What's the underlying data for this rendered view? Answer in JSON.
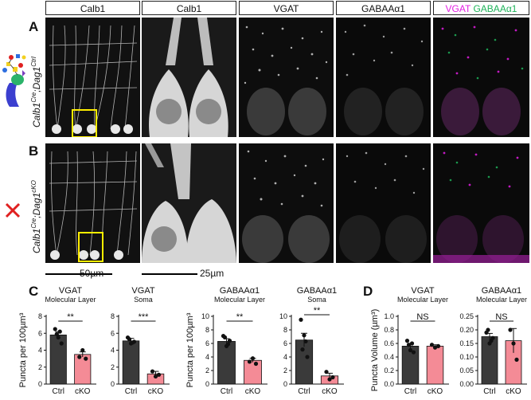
{
  "headers": [
    "Calb1",
    "Calb1",
    "VGAT",
    "GABAₐα1",
    "VGAT GABAₐα1"
  ],
  "header_parts": {
    "h1": "Calb1",
    "h2": "Calb1",
    "h3": "VGAT",
    "h4": "GABAAα1",
    "h5a": "VGAT",
    "h5b": "GABAAα1"
  },
  "colors": {
    "magenta": "#e31ce3",
    "green": "#1fb35a",
    "ctrl": "#3a3a3a",
    "cko": "#f48b96",
    "yellow": "#ffee00",
    "red": "#e02020"
  },
  "panels": {
    "A": "A",
    "B": "B",
    "C": "C",
    "D": "D"
  },
  "rows": {
    "a_label_main": "Calb1",
    "a_label_sup1": "Cre",
    "a_label_mid": ";Dag1",
    "a_label_sup2": "Ctrl",
    "b_label_main": "Calb1",
    "b_label_sup1": "Cre",
    "b_label_mid": ";Dag1",
    "b_label_sup2": "cKO"
  },
  "icons": {
    "row_a": "dystroglycan-glycan-icon",
    "row_b": "red-x-icon"
  },
  "scalebars": {
    "left": "50µm",
    "right": "25µm"
  },
  "chart_data": [
    {
      "type": "bar",
      "title": "VGAT",
      "subtitle": "Molecular Layer",
      "ylabel": "Puncta per 100µm³",
      "categories": [
        "Ctrl",
        "cKO"
      ],
      "values": [
        5.8,
        3.5
      ],
      "errors": [
        0.4,
        0.3
      ],
      "ylim": [
        0,
        8
      ],
      "yticks": [
        0,
        2,
        4,
        6,
        8
      ],
      "significance": "**",
      "points": [
        [
          6.5,
          5.5,
          4.8,
          5.9,
          6.2
        ],
        [
          3.2,
          4.0,
          3.0
        ]
      ]
    },
    {
      "type": "bar",
      "title": "VGAT",
      "subtitle": "Soma",
      "ylabel": "",
      "categories": [
        "Ctrl",
        "cKO"
      ],
      "values": [
        5.1,
        1.2
      ],
      "errors": [
        0.3,
        0.3
      ],
      "ylim": [
        0,
        8
      ],
      "yticks": [
        0,
        2,
        4,
        6,
        8
      ],
      "significance": "***",
      "points": [
        [
          5.5,
          4.8,
          5.0,
          5.3,
          4.9
        ],
        [
          1.5,
          0.9,
          1.1
        ]
      ]
    },
    {
      "type": "bar",
      "title": "GABAAα1",
      "subtitle": "Molecular Layer",
      "ylabel": "Puncta per 100µm³",
      "categories": [
        "Ctrl",
        "cKO"
      ],
      "values": [
        6.3,
        3.5
      ],
      "errors": [
        0.4,
        0.3
      ],
      "ylim": [
        0,
        10
      ],
      "yticks": [
        0,
        2,
        4,
        6,
        8,
        10
      ],
      "significance": "**",
      "points": [
        [
          7.1,
          5.6,
          6.4,
          6.9,
          5.9
        ],
        [
          3.3,
          3.8,
          3.0
        ]
      ]
    },
    {
      "type": "bar",
      "title": "GABAAα1",
      "subtitle": "Soma",
      "ylabel": "",
      "categories": [
        "Ctrl",
        "cKO"
      ],
      "values": [
        6.5,
        1.2
      ],
      "errors": [
        1.0,
        0.4
      ],
      "ylim": [
        0,
        10
      ],
      "yticks": [
        0,
        2,
        4,
        6,
        8,
        10
      ],
      "significance": "**",
      "points": [
        [
          9.5,
          7.2,
          4.0,
          5.1,
          6.3
        ],
        [
          1.8,
          0.7,
          1.0
        ]
      ]
    },
    {
      "type": "bar",
      "title": "VGAT",
      "subtitle": "Molecular Layer",
      "ylabel": "Puncta Volume (µm³)",
      "categories": [
        "Ctrl",
        "cKO"
      ],
      "values": [
        0.56,
        0.56
      ],
      "errors": [
        0.04,
        0.02
      ],
      "ylim": [
        0,
        1.0
      ],
      "yticks": [
        0.0,
        0.2,
        0.4,
        0.6,
        0.8,
        1.0
      ],
      "significance": "NS",
      "points": [
        [
          0.64,
          0.5,
          0.47,
          0.58,
          0.6
        ],
        [
          0.58,
          0.54,
          0.56
        ]
      ]
    },
    {
      "type": "bar",
      "title": "GABAAα1",
      "subtitle": "Molecular Layer",
      "ylabel": "",
      "categories": [
        "Ctrl",
        "cKO"
      ],
      "values": [
        0.175,
        0.16
      ],
      "errors": [
        0.012,
        0.045
      ],
      "ylim": [
        0,
        0.25
      ],
      "yticks": [
        0.0,
        0.05,
        0.1,
        0.15,
        0.2,
        0.25
      ],
      "significance": "NS",
      "points": [
        [
          0.19,
          0.15,
          0.17,
          0.2,
          0.16
        ],
        [
          0.2,
          0.15,
          0.09
        ]
      ]
    }
  ]
}
